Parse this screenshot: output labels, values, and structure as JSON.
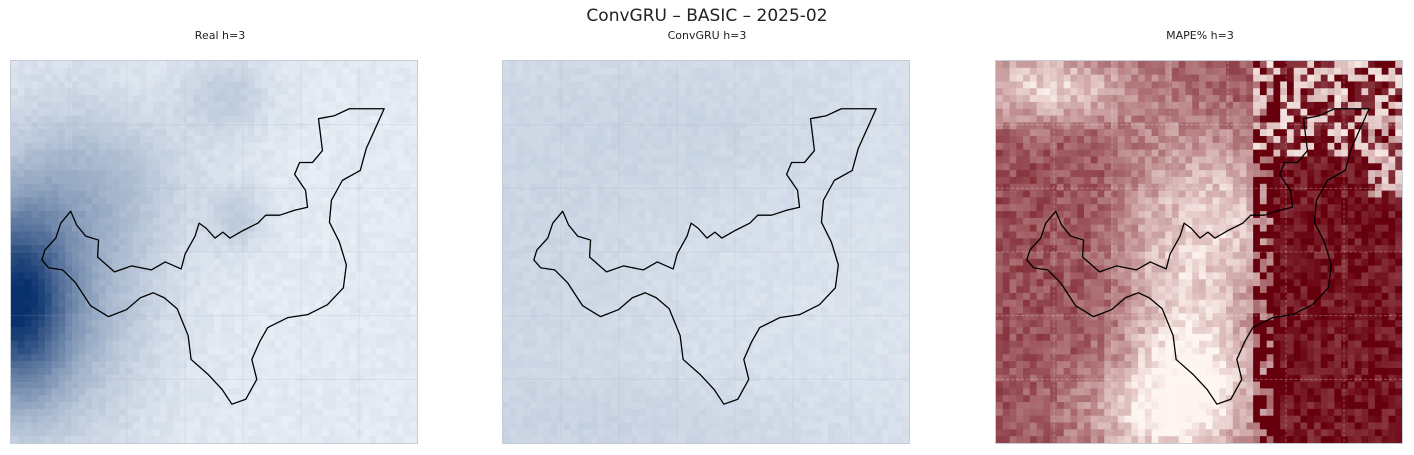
{
  "figure": {
    "title": "ConvGRU – BASIC – 2025-02"
  },
  "chart_data": [
    {
      "type": "heatmap",
      "title": "Real h=3",
      "colormap": "Blues",
      "color_min": "#f7fbff",
      "color_max": "#08306b",
      "grid": true,
      "boundary_outline": true
    },
    {
      "type": "heatmap",
      "title": "ConvGRU h=3",
      "colormap": "Blues",
      "color_min": "#f7fbff",
      "color_max": "#08306b",
      "grid": true,
      "boundary_outline": true
    },
    {
      "type": "heatmap",
      "title": "MAPE% h=3",
      "colormap": "Reds",
      "color_min": "#fff5f0",
      "color_max": "#67000d",
      "grid": true,
      "boundary_outline": true
    }
  ]
}
